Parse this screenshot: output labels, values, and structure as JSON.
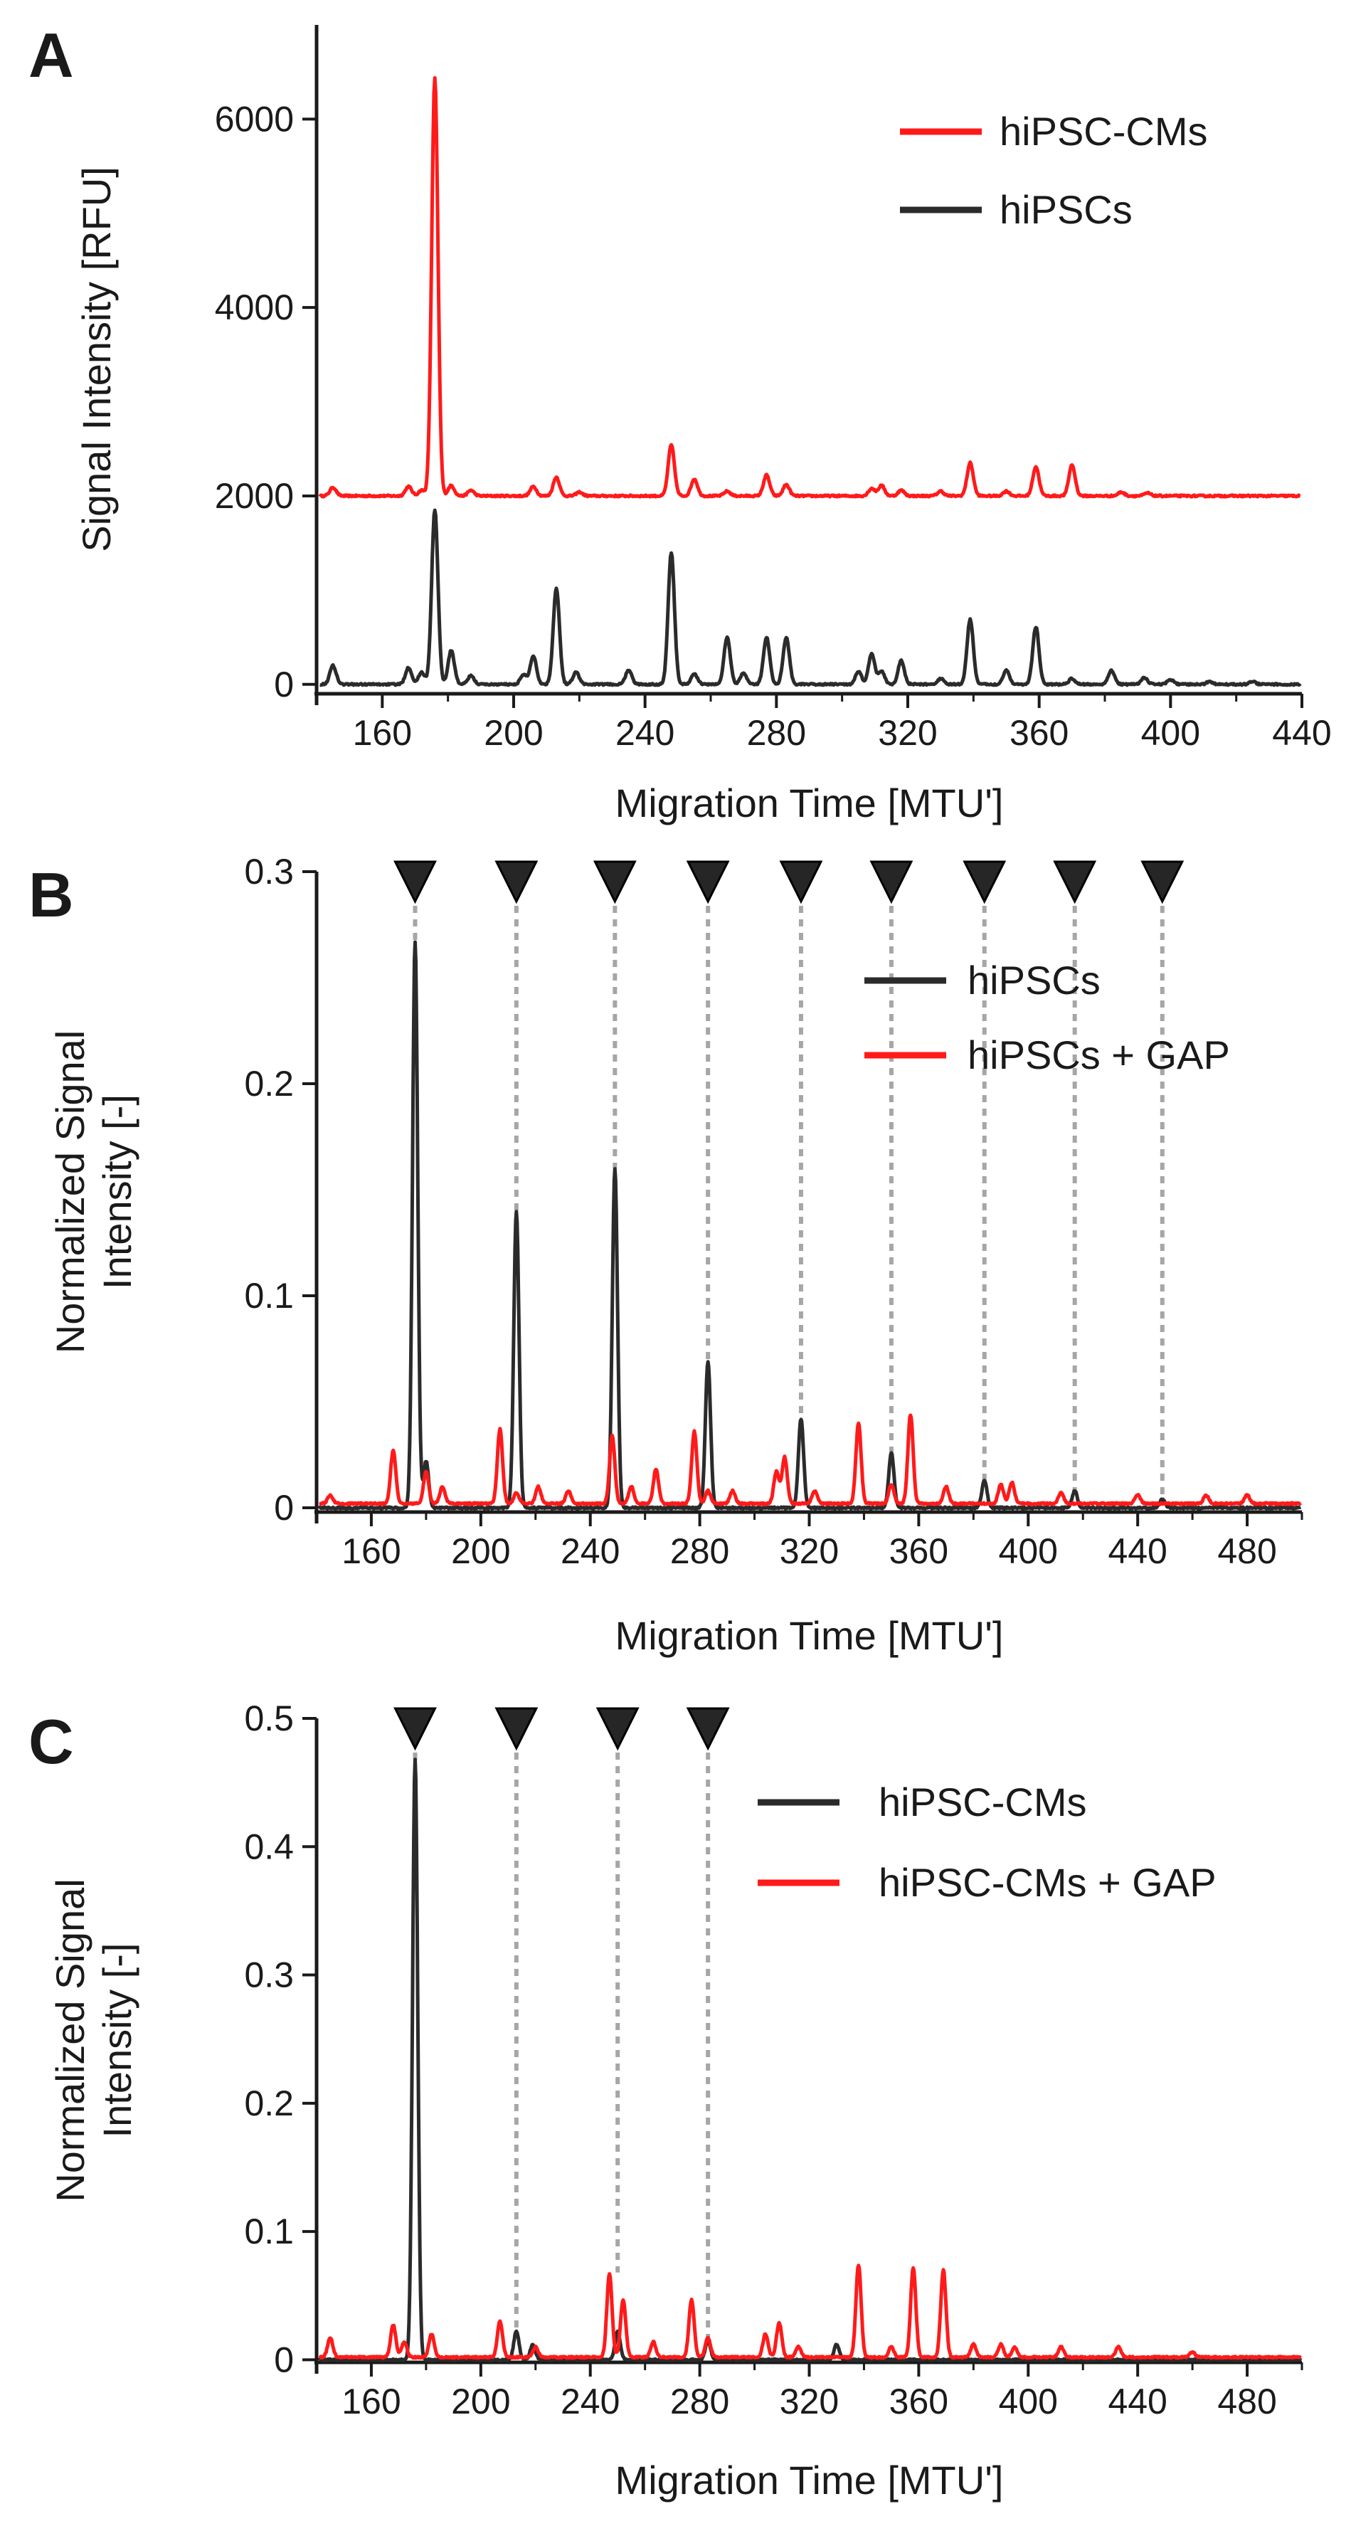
{
  "colors": {
    "black_series": "#2b2b2b",
    "red_series": "#ff1a1a",
    "axis": "#1a1a1a",
    "guide": "#a6a6a6",
    "marker": "#262626"
  },
  "chart_data": [
    {
      "panel": "A",
      "type": "line",
      "xlabel": "Migration Time [MTU']",
      "ylabel": "Signal Intensity [RFU]",
      "ylabel_lines": [
        "Signal Intensity [RFU]"
      ],
      "xlim": [
        140,
        440
      ],
      "ylim": [
        -100,
        7000
      ],
      "xticks": [
        160,
        200,
        240,
        280,
        320,
        360,
        400,
        440
      ],
      "xtick_labels": [
        "160",
        "200",
        "240",
        "280",
        "320",
        "360",
        "400",
        "440"
      ],
      "yticks": [
        0,
        2000,
        4000,
        6000
      ],
      "ytick_labels": [
        "0",
        "2000",
        "4000",
        "6000"
      ],
      "legend_position": "top-right",
      "series": [
        {
          "name": "hiPSC-CMs",
          "color": "#ff1a1a",
          "baseline": 2000,
          "peaks": [
            [
              145,
              90
            ],
            [
              168,
              100
            ],
            [
              172,
              60
            ],
            [
              176,
              4430
            ],
            [
              181,
              110
            ],
            [
              187,
              60
            ],
            [
              206,
              100
            ],
            [
              213,
              200
            ],
            [
              220,
              40
            ],
            [
              248,
              540
            ],
            [
              255,
              180
            ],
            [
              265,
              50
            ],
            [
              277,
              220
            ],
            [
              283,
              120
            ],
            [
              309,
              80
            ],
            [
              312,
              110
            ],
            [
              318,
              60
            ],
            [
              330,
              50
            ],
            [
              339,
              350
            ],
            [
              350,
              50
            ],
            [
              359,
              310
            ],
            [
              370,
              330
            ],
            [
              385,
              40
            ],
            [
              393,
              30
            ]
          ]
        },
        {
          "name": "hiPSCs",
          "color": "#2b2b2b",
          "baseline": 0,
          "peaks": [
            [
              145,
              200
            ],
            [
              168,
              180
            ],
            [
              172,
              130
            ],
            [
              176,
              1850
            ],
            [
              181,
              360
            ],
            [
              187,
              90
            ],
            [
              203,
              100
            ],
            [
              206,
              300
            ],
            [
              213,
              1020
            ],
            [
              219,
              130
            ],
            [
              235,
              150
            ],
            [
              248,
              1400
            ],
            [
              255,
              110
            ],
            [
              265,
              500
            ],
            [
              270,
              120
            ],
            [
              277,
              500
            ],
            [
              283,
              500
            ],
            [
              305,
              130
            ],
            [
              309,
              320
            ],
            [
              312,
              140
            ],
            [
              318,
              250
            ],
            [
              330,
              60
            ],
            [
              339,
              690
            ],
            [
              350,
              150
            ],
            [
              359,
              610
            ],
            [
              370,
              60
            ],
            [
              382,
              150
            ],
            [
              392,
              70
            ],
            [
              400,
              50
            ],
            [
              412,
              30
            ],
            [
              425,
              30
            ]
          ]
        }
      ]
    },
    {
      "panel": "B",
      "type": "line",
      "xlabel": "Migration Time [MTU']",
      "ylabel": "Normalized Signal Intensity [-]",
      "ylabel_lines": [
        "Normalized Signal",
        "Intensity [-]"
      ],
      "xlim": [
        140,
        500
      ],
      "ylim": [
        -0.002,
        0.3
      ],
      "xticks": [
        160,
        200,
        240,
        280,
        320,
        360,
        400,
        440,
        480
      ],
      "xtick_labels": [
        "160",
        "200",
        "240",
        "280",
        "320",
        "360",
        "400",
        "440",
        "480"
      ],
      "yticks": [
        0,
        0.1,
        0.2,
        0.3
      ],
      "ytick_labels": [
        "0",
        "0.1",
        "0.2",
        "0.3"
      ],
      "legend_position": "top-right",
      "markers_x": [
        176,
        213,
        249,
        283,
        317,
        350,
        384,
        417,
        449
      ],
      "guide_tops": [
        0.267,
        0.14,
        0.16,
        0.069,
        0.042,
        0.026,
        0.013,
        0.008,
        0.004
      ],
      "series": [
        {
          "name": "hiPSCs",
          "color": "#2b2b2b",
          "baseline": 0,
          "peaks": [
            [
              176,
              0.267
            ],
            [
              180,
              0.022
            ],
            [
              213,
              0.14
            ],
            [
              249,
              0.16
            ],
            [
              283,
              0.069
            ],
            [
              317,
              0.042
            ],
            [
              350,
              0.026
            ],
            [
              384,
              0.013
            ],
            [
              417,
              0.008
            ],
            [
              449,
              0.004
            ]
          ]
        },
        {
          "name": "hiPSCs + GAP",
          "color": "#ff1a1a",
          "baseline": 0.002,
          "peaks": [
            [
              145,
              0.004
            ],
            [
              168,
              0.025
            ],
            [
              180,
              0.015
            ],
            [
              186,
              0.008
            ],
            [
              207,
              0.035
            ],
            [
              213,
              0.005
            ],
            [
              221,
              0.008
            ],
            [
              232,
              0.006
            ],
            [
              248,
              0.032
            ],
            [
              255,
              0.008
            ],
            [
              264,
              0.016
            ],
            [
              278,
              0.034
            ],
            [
              283,
              0.006
            ],
            [
              292,
              0.006
            ],
            [
              308,
              0.015
            ],
            [
              311,
              0.022
            ],
            [
              322,
              0.006
            ],
            [
              338,
              0.038
            ],
            [
              350,
              0.009
            ],
            [
              357,
              0.042
            ],
            [
              370,
              0.008
            ],
            [
              390,
              0.009
            ],
            [
              394,
              0.01
            ],
            [
              412,
              0.005
            ],
            [
              440,
              0.004
            ],
            [
              465,
              0.004
            ],
            [
              480,
              0.004
            ]
          ]
        }
      ]
    },
    {
      "panel": "C",
      "type": "line",
      "xlabel": "Migration Time [MTU']",
      "ylabel": "Normalized Signal Intensity [-]",
      "ylabel_lines": [
        "Normalized Signal",
        "Intensity [-]"
      ],
      "xlim": [
        140,
        500
      ],
      "ylim": [
        -0.002,
        0.5
      ],
      "xticks": [
        160,
        200,
        240,
        280,
        320,
        360,
        400,
        440,
        480
      ],
      "xtick_labels": [
        "160",
        "200",
        "240",
        "280",
        "320",
        "360",
        "400",
        "440",
        "480"
      ],
      "yticks": [
        0,
        0.1,
        0.2,
        0.3,
        0.4,
        0.5
      ],
      "ytick_labels": [
        "0",
        "0.1",
        "0.2",
        "0.3",
        "0.4",
        "0.5"
      ],
      "legend_position": "top-right",
      "markers_x": [
        176,
        213,
        250,
        283
      ],
      "guide_tops": [
        0.468,
        0.022,
        0.068,
        0.015
      ],
      "series": [
        {
          "name": "hiPSC-CMs",
          "color": "#2b2b2b",
          "baseline": 0,
          "peaks": [
            [
              176,
              0.468
            ],
            [
              213,
              0.022
            ],
            [
              219,
              0.012
            ],
            [
              250,
              0.022
            ],
            [
              283,
              0.015
            ],
            [
              330,
              0.012
            ]
          ]
        },
        {
          "name": "hiPSC-CMs + GAP",
          "color": "#ff1a1a",
          "baseline": 0.002,
          "peaks": [
            [
              145,
              0.015
            ],
            [
              168,
              0.025
            ],
            [
              172,
              0.012
            ],
            [
              182,
              0.018
            ],
            [
              207,
              0.028
            ],
            [
              220,
              0.008
            ],
            [
              247,
              0.065
            ],
            [
              252,
              0.045
            ],
            [
              263,
              0.012
            ],
            [
              277,
              0.045
            ],
            [
              283,
              0.015
            ],
            [
              304,
              0.018
            ],
            [
              309,
              0.027
            ],
            [
              316,
              0.008
            ],
            [
              338,
              0.072
            ],
            [
              350,
              0.008
            ],
            [
              358,
              0.07
            ],
            [
              369,
              0.068
            ],
            [
              380,
              0.01
            ],
            [
              390,
              0.01
            ],
            [
              395,
              0.008
            ],
            [
              412,
              0.008
            ],
            [
              433,
              0.008
            ],
            [
              460,
              0.004
            ]
          ]
        }
      ]
    }
  ],
  "panel_labels": [
    "A",
    "B",
    "C"
  ]
}
